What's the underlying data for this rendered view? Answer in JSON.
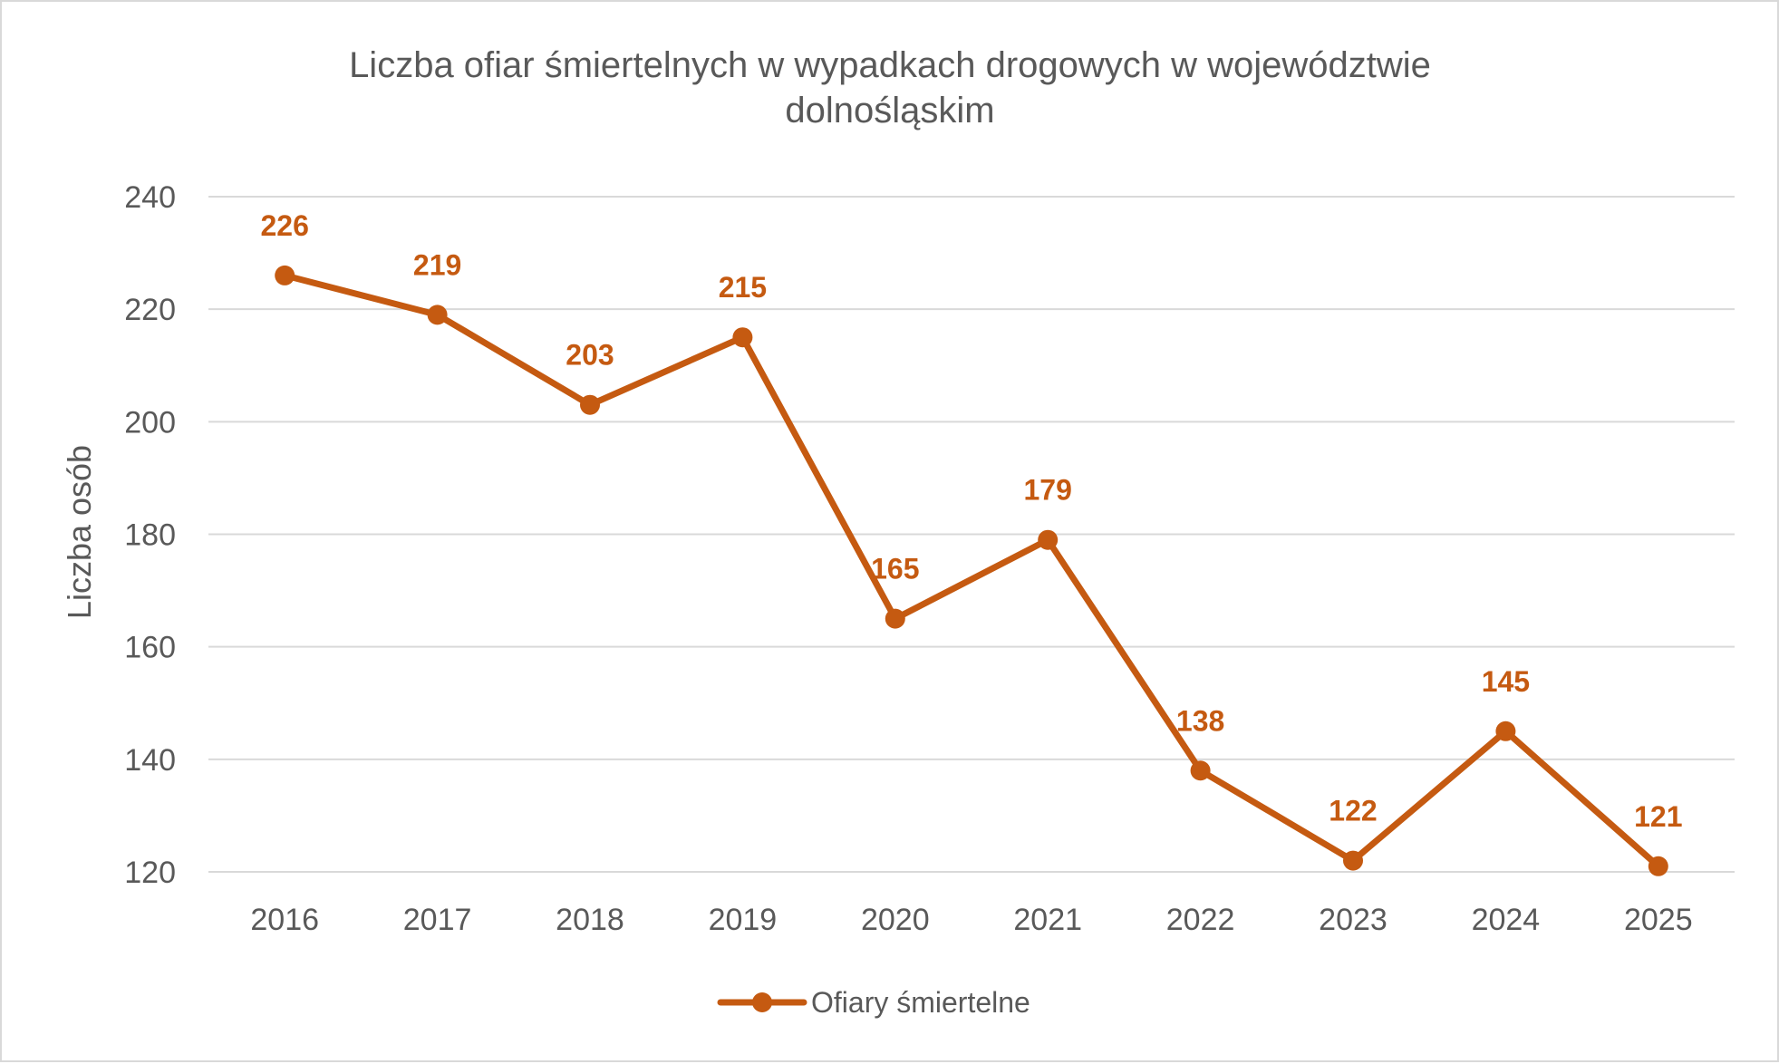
{
  "chart_data": {
    "type": "line",
    "title": "Liczba ofiar śmiertelnych w wypadkach drogowych w województwie dolnośląskim",
    "title_lines": [
      "Liczba ofiar śmiertelnych w wypadkach drogowych w województwie",
      "dolnośląskim"
    ],
    "xlabel": "",
    "ylabel": "Liczba osób",
    "categories": [
      "2016",
      "2017",
      "2018",
      "2019",
      "2020",
      "2021",
      "2022",
      "2023",
      "2024",
      "2025"
    ],
    "series": [
      {
        "name": "Ofiary śmiertelne",
        "values": [
          226,
          219,
          203,
          215,
          165,
          179,
          138,
          122,
          145,
          121
        ],
        "color": "#c55a11"
      }
    ],
    "ylim": [
      120,
      240
    ],
    "yticks": [
      120,
      140,
      160,
      180,
      200,
      220,
      240
    ],
    "grid": true,
    "data_labels": true,
    "legend_position": "bottom"
  }
}
